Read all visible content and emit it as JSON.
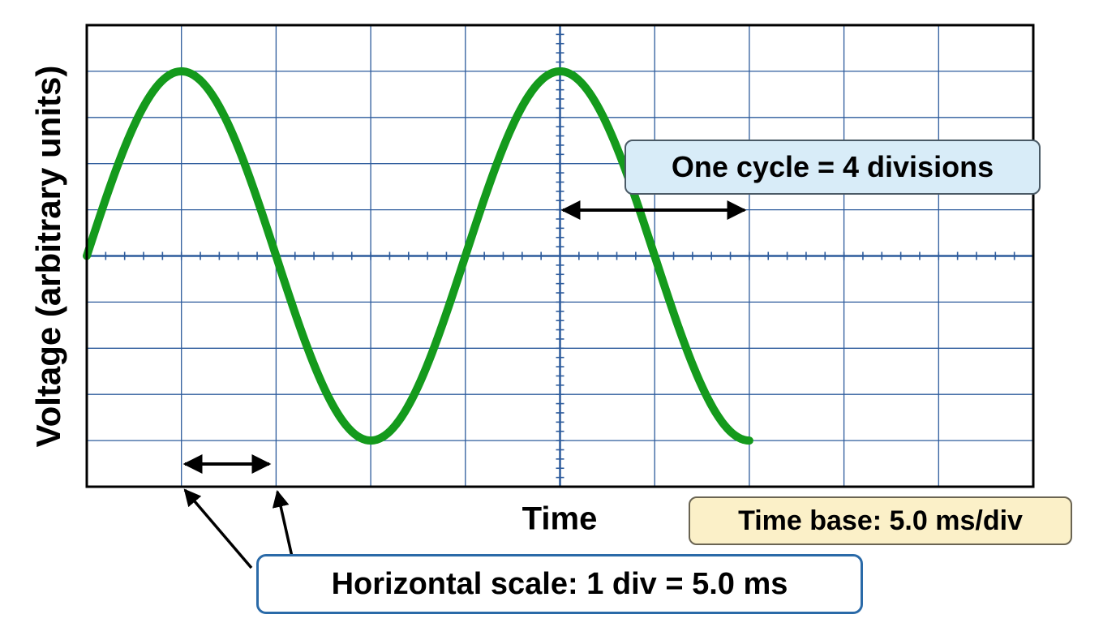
{
  "diagram": {
    "y_axis_label": "Voltage (arbitrary units)",
    "x_axis_label": "Time",
    "cycle_annotation": "One cycle = 4 divisions",
    "time_base_label": "Time base: 5.0 ms/div",
    "horizontal_scale_label": "Horizontal scale: 1 div = 5.0 ms",
    "colors": {
      "grid": "#2d5b9c",
      "trace": "#149a1c",
      "frame": "#000000",
      "cycle_box_fill": "#d8ecf8",
      "time_base_box_fill": "#fbf0c8",
      "scale_box_border": "#2a6aa8"
    },
    "screen": {
      "horizontal_divisions": 10,
      "vertical_divisions": 10,
      "minor_ticks_per_division": 5
    },
    "waveform": {
      "shape": "sine",
      "start_division": 0,
      "end_division": 7,
      "cycle_divisions": 4,
      "peak_divisions": 4
    }
  }
}
